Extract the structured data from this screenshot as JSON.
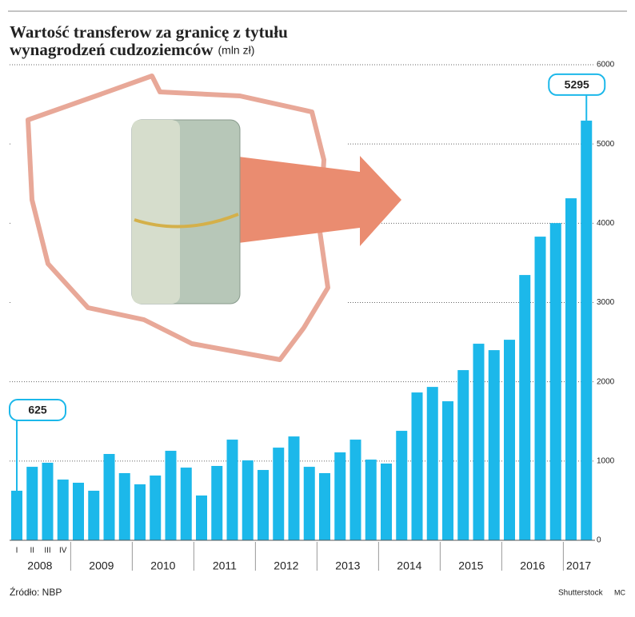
{
  "chart_data": {
    "type": "bar",
    "title": [
      "Wartość transferow za granicę z tytułu",
      "wynagrodzeń cudzoziemców"
    ],
    "unit": "(mln zł)",
    "categories": [
      "I",
      "II",
      "III",
      "IV",
      null,
      null,
      null,
      null,
      null,
      null,
      null,
      null,
      null,
      null,
      null,
      null,
      null,
      null,
      null,
      null,
      null,
      null,
      null,
      null,
      null,
      null,
      null,
      null,
      null,
      null,
      null,
      null,
      null,
      null,
      null,
      null,
      null,
      null
    ],
    "years": [
      "2008",
      "2009",
      "2010",
      "2011",
      "2012",
      "2013",
      "2014",
      "2015",
      "2016",
      "2017"
    ],
    "series": [
      {
        "name": "Wartość transferów",
        "color": "#1cb8ea",
        "values": [
          625,
          927,
          978,
          766,
          726,
          625,
          1089,
          847,
          706,
          817,
          1129,
          917,
          565,
          938,
          1270,
          1008,
          887,
          1169,
          1310,
          927,
          847,
          1109,
          1270,
          1018,
          968,
          1381,
          1865,
          1935,
          1754,
          2147,
          2480,
          2399,
          2530,
          3347,
          3831,
          4002,
          4315,
          5295
        ]
      }
    ],
    "ylim": [
      0,
      6000
    ],
    "yticks": [
      0,
      1000,
      2000,
      3000,
      4000,
      5000,
      6000
    ],
    "grid": true,
    "source": "Źródło: NBP",
    "credit": "Shutterstock",
    "author": "MC"
  }
}
